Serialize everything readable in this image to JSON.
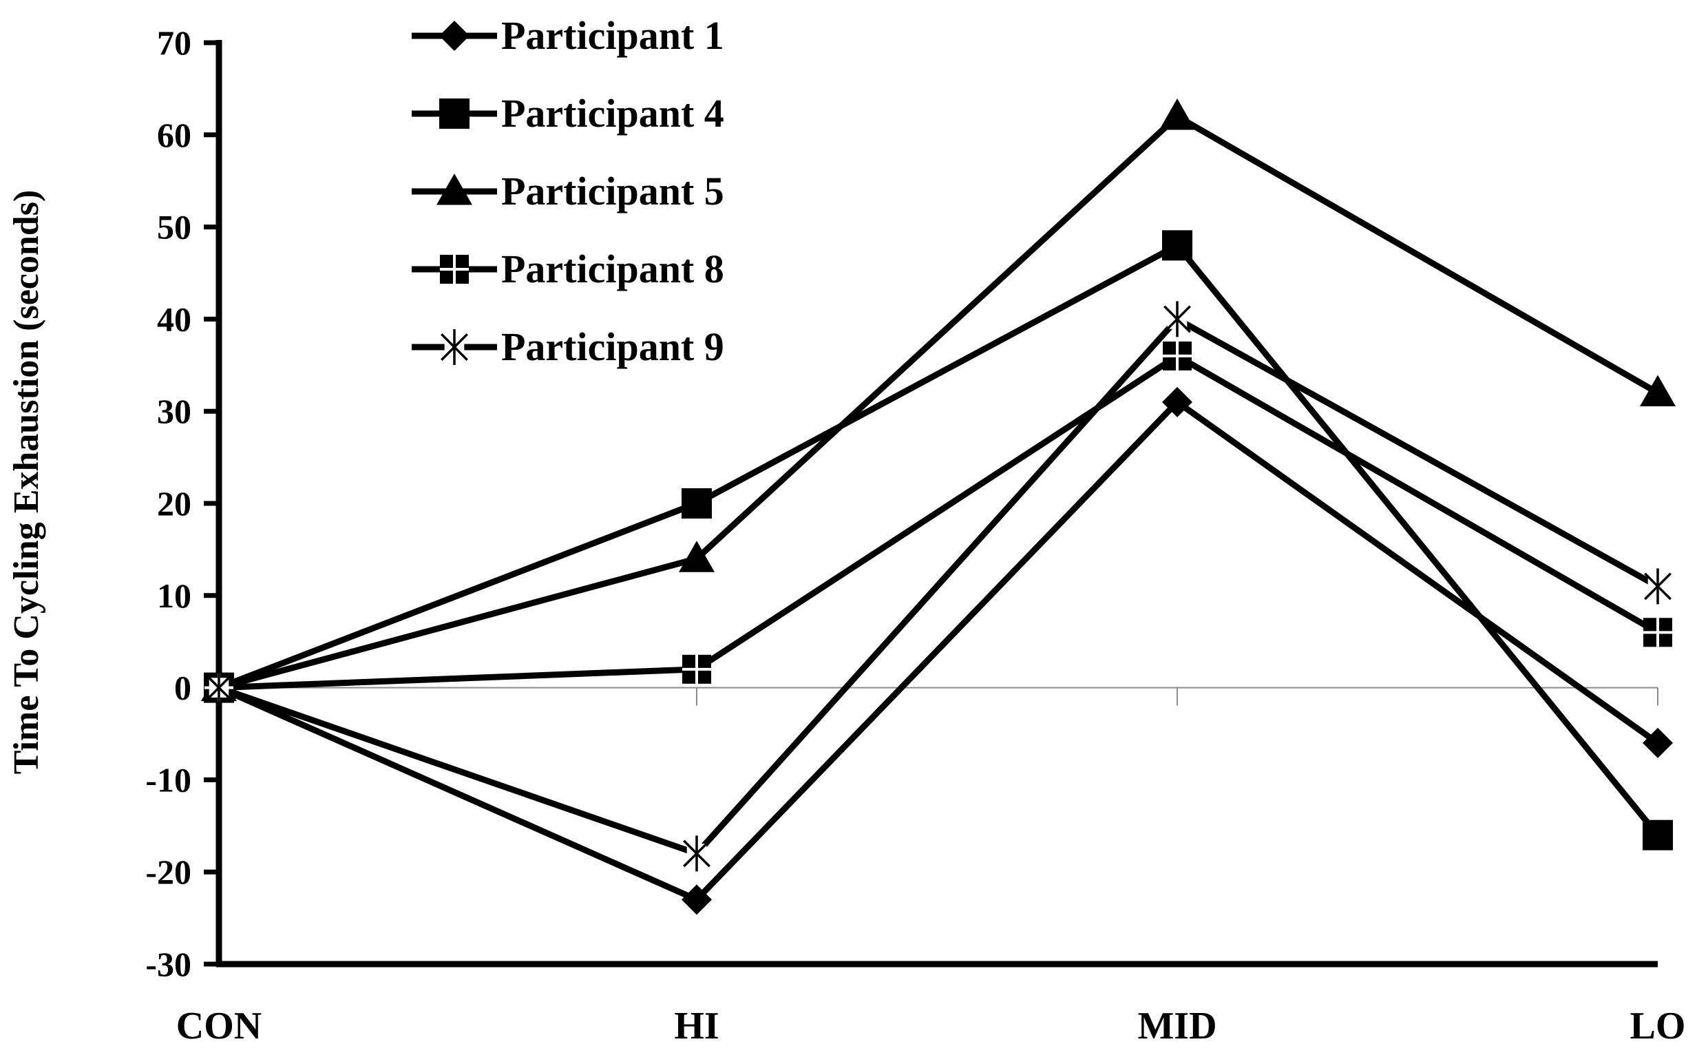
{
  "chart_data": {
    "type": "line",
    "title": "",
    "xlabel": "",
    "ylabel": "Time To Cycling Exhaustion (seconds)",
    "categories": [
      "CON",
      "HI",
      "MID",
      "LO"
    ],
    "ylim": [
      -30,
      70
    ],
    "yticks": [
      70,
      60,
      50,
      40,
      30,
      20,
      10,
      0,
      -10,
      -20,
      -30
    ],
    "legend_position": "top-left",
    "grid": false,
    "series": [
      {
        "name": "Participant 1",
        "marker": "diamond",
        "values": [
          0,
          -23,
          31,
          -6
        ]
      },
      {
        "name": "Participant 4",
        "marker": "square",
        "values": [
          0,
          20,
          48,
          -16
        ]
      },
      {
        "name": "Participant 5",
        "marker": "triangle",
        "values": [
          0,
          14,
          62,
          32
        ]
      },
      {
        "name": "Participant 8",
        "marker": "square-cross",
        "values": [
          0,
          2,
          36,
          6
        ]
      },
      {
        "name": "Participant 9",
        "marker": "asterisk",
        "values": [
          0,
          -18,
          40,
          11
        ]
      }
    ],
    "colors": {
      "line": "#000000",
      "background": "#ffffff"
    }
  }
}
